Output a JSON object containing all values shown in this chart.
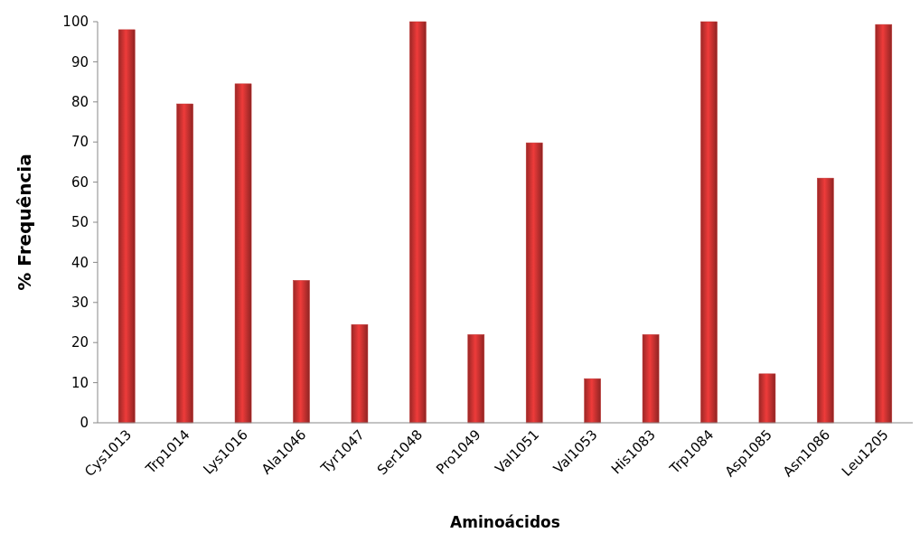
{
  "chart_data": {
    "type": "bar",
    "xlabel": "Aminoácidos",
    "ylabel": "% Frequência",
    "categories": [
      "Cys1013",
      "Trp1014",
      "Lys1016",
      "Ala1046",
      "Tyr1047",
      "Ser1048",
      "Pro1049",
      "Val1051",
      "Val1053",
      "His1083",
      "Trp1084",
      "Asp1085",
      "Asn1086",
      "Leu1205"
    ],
    "values": [
      98,
      79.5,
      84.5,
      35.5,
      24.5,
      100,
      22,
      69.8,
      11,
      22,
      100,
      12.2,
      61,
      99.3
    ],
    "color": "#c0302f",
    "ylim": [
      0,
      100
    ],
    "yticks": [
      0,
      10,
      20,
      30,
      40,
      50,
      60,
      70,
      80,
      90,
      100
    ],
    "grid": false
  }
}
